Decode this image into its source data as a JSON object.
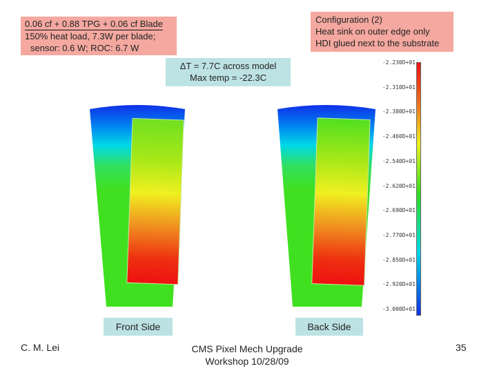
{
  "config_left": {
    "line1": "0.06 cf + 0.88 TPG + 0.06 cf Blade",
    "line2": "150% heat load, 7.3W per blade;",
    "line3": "sensor: 0.6 W; ROC:  6.7 W"
  },
  "config_right": {
    "line1": "Configuration (2)",
    "line2": "Heat sink on outer edge only",
    "line3": "HDI glued next to the substrate"
  },
  "delta": {
    "line1": "ΔT = 7.7C across model",
    "line2": "Max temp = -22.3C"
  },
  "labels": {
    "front": "Front Side",
    "back": "Back Side"
  },
  "footer": {
    "author": "C. M. Lei",
    "conference_line1": "CMS Pixel Mech Upgrade",
    "conference_line2": "Workshop 10/28/09",
    "slide_number": "35"
  },
  "colors": {
    "box_pink": "#f4a8a0",
    "box_cyan": "#bde2e4",
    "heat_blue": "#1030e8",
    "heat_cyan": "#00d8e8",
    "heat_green": "#30e020",
    "heat_yellow": "#f0f020",
    "heat_orange": "#f08020",
    "heat_red": "#ee1010"
  },
  "color_scale": {
    "ticks": [
      "-2.230D+01",
      "-2.310D+01",
      "-2.380D+01",
      "-2.460D+01",
      "-2.540D+01",
      "-2.620D+01",
      "-2.690D+01",
      "-2.770D+01",
      "-2.850D+01",
      "-2.920D+01",
      "-3.000D+01"
    ]
  }
}
